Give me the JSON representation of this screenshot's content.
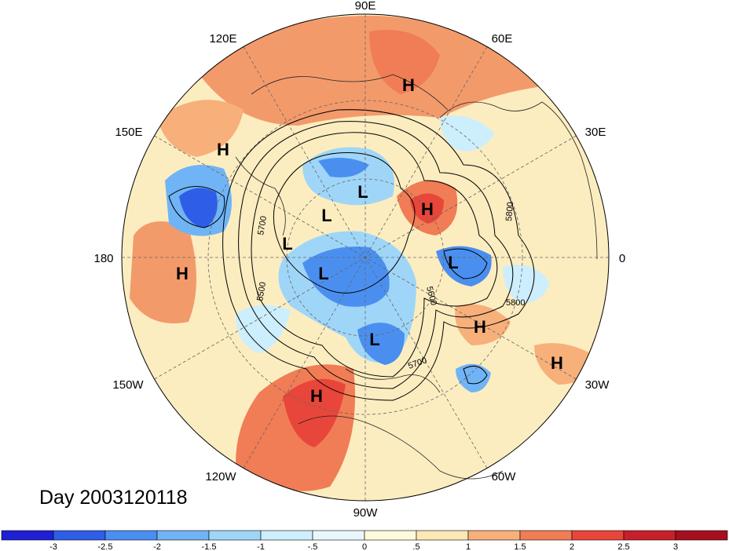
{
  "date_label": "Day 2003120118",
  "lon_labels": {
    "e90": "90E",
    "e60": "60E",
    "e30": "30E",
    "e0": "0",
    "w30": "30W",
    "w60": "60W",
    "w90": "90W",
    "w120": "120W",
    "w150": "150W",
    "e180": "180",
    "e150": "150E",
    "e120": "120E"
  },
  "contour_labels": {
    "c1": "5700",
    "c2": "5800",
    "c3": "5500",
    "c4": "5600",
    "c5": "5800",
    "c6": "5700"
  },
  "pressure_centers": [
    {
      "label": "H"
    },
    {
      "label": "H"
    },
    {
      "label": "H"
    },
    {
      "label": "H"
    },
    {
      "label": "H"
    },
    {
      "label": "H"
    },
    {
      "label": "H"
    },
    {
      "label": "L"
    },
    {
      "label": "L"
    },
    {
      "label": "L"
    },
    {
      "label": "L"
    },
    {
      "label": "L"
    },
    {
      "label": "L"
    }
  ],
  "colorbar": {
    "colors": [
      "#1f1fd6",
      "#2e5ee8",
      "#4a8ff0",
      "#70b4f5",
      "#9fd6f8",
      "#cdeefc",
      "#e9f7fd",
      "#fff9dc",
      "#fce8b5",
      "#f7b07a",
      "#f07d55",
      "#e8463a",
      "#c7202a",
      "#a50f1f"
    ],
    "ticks": [
      "-3",
      "-2.5",
      "-2",
      "-1.5",
      "-1",
      "-.5",
      "0",
      ".5",
      "1",
      "1.5",
      "2",
      "2.5",
      "3"
    ]
  }
}
